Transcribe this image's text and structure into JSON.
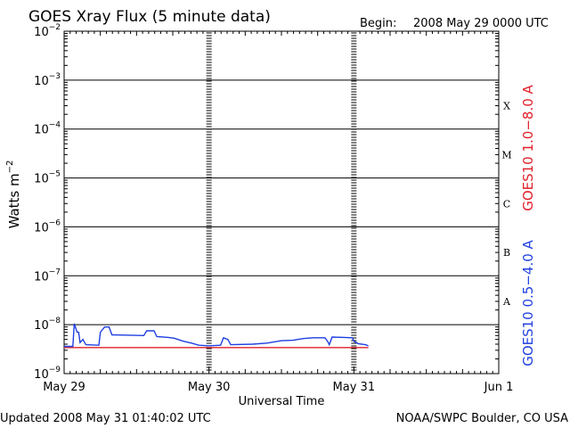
{
  "header": {
    "title": "GOES Xray Flux (5 minute data)",
    "begin_label": "Begin:",
    "begin_value": "2008 May 29 0000 UTC"
  },
  "footer": {
    "updated": "Updated 2008 May 31 01:40:02 UTC",
    "credit": "NOAA/SWPC Boulder, CO USA"
  },
  "chart_data": {
    "type": "line",
    "title": "GOES Xray Flux (5 minute data)",
    "xlabel": "Universal Time",
    "ylabel_base": "Watts m",
    "ylabel_sup": "−2",
    "x_ticks": [
      "May 29",
      "May 30",
      "May 31",
      "Jun 1"
    ],
    "x_range_days": [
      0,
      3
    ],
    "y_scale": "log",
    "ylim": [
      1e-09,
      0.01
    ],
    "y_ticks": [
      {
        "value": 0.01,
        "base": "10",
        "exp": "−2"
      },
      {
        "value": 0.001,
        "base": "10",
        "exp": "−3"
      },
      {
        "value": 0.0001,
        "base": "10",
        "exp": "−4"
      },
      {
        "value": 1e-05,
        "base": "10",
        "exp": "−5"
      },
      {
        "value": 1e-06,
        "base": "10",
        "exp": "−6"
      },
      {
        "value": 1e-07,
        "base": "10",
        "exp": "−7"
      },
      {
        "value": 1e-08,
        "base": "10",
        "exp": "−8"
      },
      {
        "value": 1e-09,
        "base": "10",
        "exp": "−9"
      }
    ],
    "flare_classes": [
      {
        "label": "X",
        "value": 0.0003
      },
      {
        "label": "M",
        "value": 3e-05
      },
      {
        "label": "C",
        "value": 3e-06
      },
      {
        "label": "B",
        "value": 3e-07
      },
      {
        "label": "A",
        "value": 3e-08
      }
    ],
    "grid": true,
    "legend_placement": "right (vertical)",
    "series": [
      {
        "name": "GOES10 1.0−8.0 A",
        "color": "#e0202a",
        "points": [
          [
            0.0,
            3.4e-09
          ],
          [
            1.0,
            3.4e-09
          ],
          [
            2.0,
            3.4e-09
          ],
          [
            2.1,
            3.4e-09
          ]
        ]
      },
      {
        "name": "GOES10 0.5−4.0 A",
        "color": "#1f3fe0",
        "points": [
          [
            0.0,
            3.6e-09
          ],
          [
            0.06,
            3.6e-09
          ],
          [
            0.07,
            1.05e-08
          ],
          [
            0.09,
            7e-09
          ],
          [
            0.1,
            7e-09
          ],
          [
            0.11,
            4.3e-09
          ],
          [
            0.13,
            5e-09
          ],
          [
            0.15,
            3.9e-09
          ],
          [
            0.24,
            3.8e-09
          ],
          [
            0.25,
            7e-09
          ],
          [
            0.28,
            9e-09
          ],
          [
            0.31,
            9e-09
          ],
          [
            0.33,
            6.2e-09
          ],
          [
            0.55,
            6e-09
          ],
          [
            0.57,
            7.5e-09
          ],
          [
            0.62,
            7.5e-09
          ],
          [
            0.64,
            5.7e-09
          ],
          [
            0.72,
            5.5e-09
          ],
          [
            0.76,
            5.3e-09
          ],
          [
            0.82,
            4.6e-09
          ],
          [
            0.88,
            4.2e-09
          ],
          [
            0.93,
            3.8e-09
          ],
          [
            1.0,
            3.7e-09
          ],
          [
            1.08,
            3.8e-09
          ],
          [
            1.1,
            5.4e-09
          ],
          [
            1.13,
            5e-09
          ],
          [
            1.15,
            3.9e-09
          ],
          [
            1.3,
            4e-09
          ],
          [
            1.4,
            4.2e-09
          ],
          [
            1.5,
            4.7e-09
          ],
          [
            1.58,
            4.8e-09
          ],
          [
            1.65,
            5.2e-09
          ],
          [
            1.72,
            5.4e-09
          ],
          [
            1.8,
            5.4e-09
          ],
          [
            1.82,
            4.5e-09
          ],
          [
            1.83,
            3.9e-09
          ],
          [
            1.85,
            5.6e-09
          ],
          [
            1.93,
            5.5e-09
          ],
          [
            1.99,
            5.4e-09
          ],
          [
            2.0,
            4.6e-09
          ],
          [
            2.03,
            4.1e-09
          ],
          [
            2.08,
            3.9e-09
          ],
          [
            2.1,
            3.7e-09
          ]
        ]
      }
    ]
  }
}
